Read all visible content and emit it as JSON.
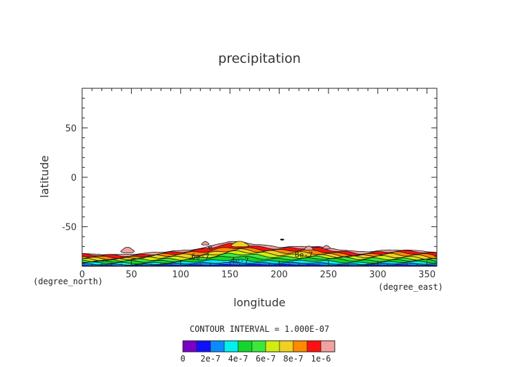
{
  "chart_data": {
    "type": "contour",
    "title": "precipitation",
    "xlabel": "longitude",
    "ylabel": "latitude",
    "x_unit": "(degree_east)",
    "y_unit": "(degree_north)",
    "xlim": [
      0,
      360
    ],
    "ylim": [
      -90,
      90
    ],
    "x_ticks": [
      0,
      50,
      100,
      150,
      200,
      250,
      300,
      350
    ],
    "y_ticks": [
      -50,
      0,
      50
    ],
    "contour_interval_text": "CONTOUR INTERVAL = 1.000E-07",
    "contour_line_labels": [
      {
        "text": "6e-7",
        "lon": 120,
        "lat": -80
      },
      {
        "text": "4e-7",
        "lon": 160,
        "lat": -84
      },
      {
        "text": "8e-7",
        "lon": 225,
        "lat": -78
      },
      {
        "text": "e",
        "lon": 130,
        "lat": -70
      }
    ],
    "colorbar": {
      "ticks": [
        "0",
        "2e-7",
        "4e-7",
        "6e-7",
        "8e-7",
        "1e-6"
      ],
      "levels": [
        0,
        1e-07,
        2e-07,
        3e-07,
        4e-07,
        5e-07,
        6e-07,
        7e-07,
        8e-07,
        9e-07,
        1e-06
      ],
      "colors": [
        "#7a00c8",
        "#1010ff",
        "#0a8cff",
        "#00f0f0",
        "#12d62a",
        "#3be83b",
        "#cfee10",
        "#f0d020",
        "#ff8a00",
        "#ff1010",
        "#f2a0a0"
      ]
    },
    "field": {
      "description_levels": "precipitation bands concentrated near the southern boundary (lat -65 to -88)",
      "band_top_lat_by_lon": {
        "lon": [
          0,
          20,
          40,
          60,
          80,
          100,
          120,
          140,
          150,
          160,
          180,
          200,
          220,
          240,
          260,
          280,
          300,
          320,
          340,
          360
        ],
        "lat": [
          -77,
          -78,
          -78,
          -77,
          -75,
          -74,
          -72,
          -67,
          -65,
          -65,
          -68,
          -70,
          -70,
          -70,
          -73,
          -75,
          -74,
          -73,
          -74,
          -76
        ]
      }
    }
  }
}
